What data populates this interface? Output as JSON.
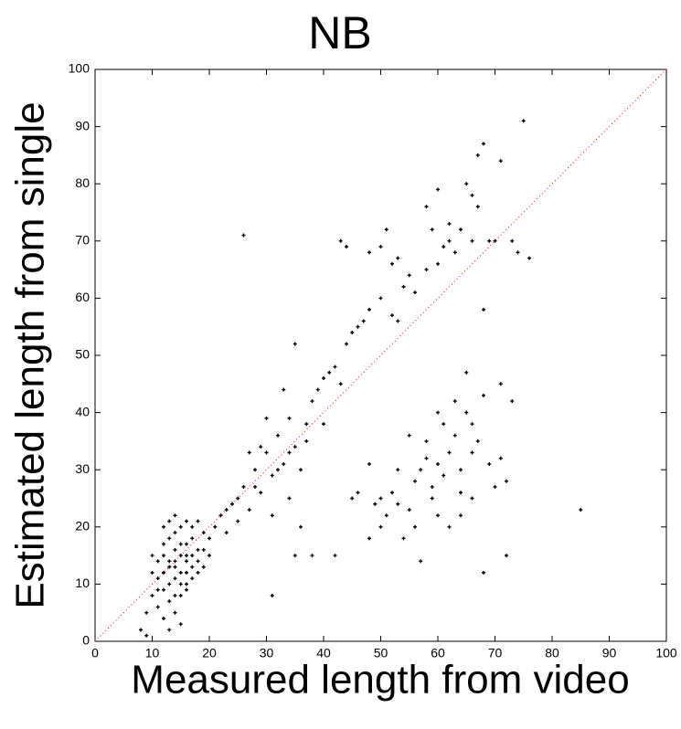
{
  "chart_data": {
    "type": "scatter",
    "title": "NB",
    "x_label": "Measured length from video",
    "y_label": "Estimated length from single",
    "xlim": [
      0,
      100
    ],
    "ylim": [
      0,
      100
    ],
    "xticks": [
      0,
      10,
      20,
      30,
      40,
      50,
      60,
      70,
      80,
      90,
      100
    ],
    "yticks": [
      0,
      10,
      20,
      30,
      40,
      50,
      60,
      70,
      80,
      90,
      100
    ],
    "diagonal": true,
    "diagonal_color": "#ff0000",
    "series": [
      {
        "color": "#000000",
        "x": [
          12,
          13,
          14,
          15,
          16,
          13,
          14,
          15,
          16,
          17,
          12,
          11,
          13,
          14,
          15,
          16,
          17,
          18,
          12,
          14,
          15,
          16,
          13,
          11,
          10,
          12,
          14,
          17,
          18,
          19,
          16,
          15,
          13,
          14,
          12,
          11,
          10,
          9,
          8,
          9,
          15,
          17,
          19,
          20,
          18,
          16,
          14,
          12,
          13,
          16,
          21,
          20,
          17,
          19,
          11,
          10,
          15,
          13,
          18,
          14,
          22,
          23,
          24,
          25,
          26,
          27,
          28,
          29,
          30,
          31,
          32,
          33,
          34,
          35,
          36,
          37,
          38,
          39,
          40,
          41,
          42,
          43,
          44,
          45,
          46,
          47,
          48,
          50,
          52,
          54,
          55,
          56,
          53,
          30,
          33,
          35,
          31,
          34,
          36,
          38,
          35,
          42,
          31,
          29,
          27,
          25,
          23,
          32,
          34,
          28,
          37,
          40,
          26,
          43,
          44,
          48,
          50,
          51,
          52,
          53,
          58,
          59,
          60,
          61,
          62,
          63,
          64,
          65,
          66,
          67,
          68,
          69,
          70,
          71,
          73,
          74,
          75,
          76,
          67,
          62,
          58,
          68,
          66,
          60,
          45,
          46,
          48,
          49,
          50,
          51,
          52,
          53,
          54,
          55,
          56,
          57,
          58,
          59,
          60,
          61,
          62,
          63,
          64,
          65,
          66,
          67,
          68,
          69,
          70,
          71,
          72,
          73,
          57,
          60,
          62,
          63,
          65,
          58,
          61,
          64,
          66,
          59,
          55,
          53,
          48,
          50,
          68,
          72,
          85,
          71,
          56,
          64,
          60,
          66
        ],
        "values": [
          12,
          14,
          13,
          15,
          14,
          10,
          16,
          12,
          17,
          15,
          9,
          11,
          18,
          11,
          10,
          12,
          13,
          16,
          15,
          14,
          17,
          15,
          13,
          14,
          12,
          17,
          19,
          18,
          14,
          16,
          10,
          8,
          7,
          5,
          4,
          6,
          8,
          5,
          2,
          1,
          20,
          20,
          19,
          18,
          12,
          9,
          8,
          20,
          21,
          21,
          20,
          15,
          11,
          13,
          9,
          15,
          3,
          2,
          21,
          22,
          22,
          19,
          24,
          21,
          27,
          23,
          30,
          26,
          33,
          29,
          36,
          31,
          39,
          34,
          30,
          38,
          42,
          44,
          46,
          47,
          48,
          45,
          52,
          54,
          55,
          56,
          58,
          60,
          57,
          62,
          64,
          61,
          56,
          39,
          44,
          52,
          22,
          25,
          20,
          15,
          15,
          15,
          8,
          34,
          33,
          25,
          23,
          30,
          33,
          27,
          35,
          38,
          71,
          70,
          69,
          68,
          69,
          72,
          66,
          67,
          76,
          72,
          79,
          69,
          70,
          68,
          72,
          80,
          78,
          76,
          87,
          70,
          70,
          84,
          70,
          68,
          91,
          67,
          85,
          73,
          65,
          58,
          70,
          66,
          25,
          26,
          31,
          24,
          20,
          22,
          26,
          24,
          18,
          23,
          28,
          30,
          32,
          25,
          31,
          29,
          33,
          36,
          30,
          40,
          38,
          35,
          43,
          31,
          27,
          32,
          28,
          42,
          14,
          22,
          20,
          42,
          47,
          35,
          38,
          26,
          33,
          27,
          36,
          30,
          18,
          25,
          12,
          15,
          23,
          45,
          20,
          22,
          40,
          25
        ]
      }
    ]
  }
}
